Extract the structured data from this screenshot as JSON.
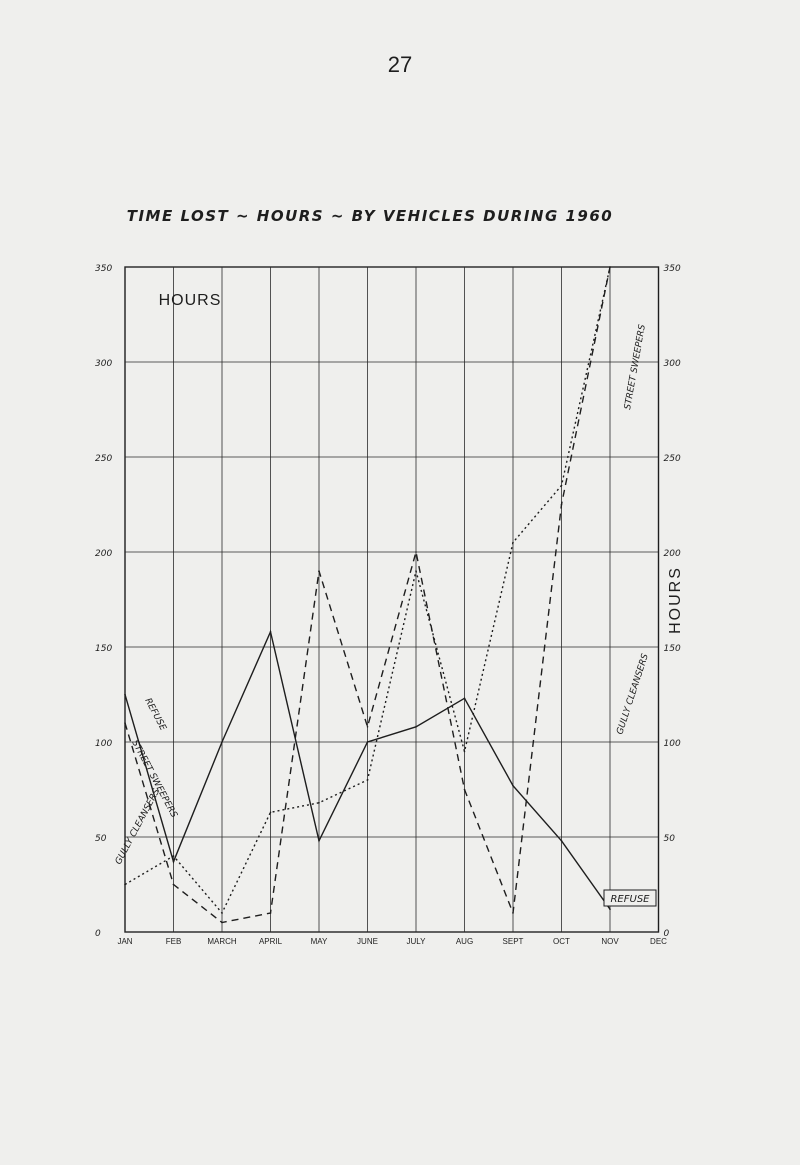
{
  "page_number": "27",
  "chart_data": {
    "type": "line",
    "title": "TIME LOST ~ HOURS ~ BY VEHICLES DURING 1960",
    "left_axis_label": "HOURS",
    "right_axis_label": "HOURS",
    "ylim": [
      0,
      350
    ],
    "y_ticks": [
      0,
      50,
      100,
      150,
      200,
      250,
      300,
      350
    ],
    "y_tick_labels_left": [
      "0",
      "50",
      "100",
      "150",
      "200",
      "250",
      "300",
      "350"
    ],
    "y_tick_labels_right": [
      "0",
      "50",
      "100",
      "150",
      "200",
      "250",
      "300",
      "350"
    ],
    "categories": [
      "JAN",
      "FEB",
      "MARCH",
      "APRIL",
      "MAY",
      "JUNE",
      "JULY",
      "AUG",
      "SEPT",
      "OCT",
      "NOV",
      "DEC"
    ],
    "grid": true,
    "series": [
      {
        "name": "REFUSE",
        "style": "solid",
        "x": [
          0,
          1,
          2,
          3,
          4,
          5,
          6,
          7,
          8,
          9,
          10
        ],
        "values": [
          125,
          37,
          100,
          158,
          48,
          100,
          108,
          123,
          77,
          48,
          12
        ]
      },
      {
        "name": "STREET SWEEPERS",
        "style": "dashed",
        "x": [
          0,
          1,
          2,
          3,
          4,
          5,
          6,
          7,
          8,
          9,
          10
        ],
        "values": [
          110,
          25,
          5,
          10,
          190,
          108,
          200,
          75,
          10,
          225,
          350
        ]
      },
      {
        "name": "GULLY CLEANSERS",
        "style": "dotted",
        "x": [
          0,
          1,
          2,
          3,
          4,
          5,
          6,
          7,
          8,
          9,
          10
        ],
        "values": [
          25,
          40,
          10,
          63,
          68,
          80,
          190,
          95,
          205,
          235,
          350
        ]
      }
    ],
    "inline_labels": [
      "REFUSE",
      "STREET SWEEPERS",
      "GULLY CLEANSERS",
      "REFUSE",
      "STREET SWEEPERS",
      "GULLY CLEANSERS"
    ]
  }
}
